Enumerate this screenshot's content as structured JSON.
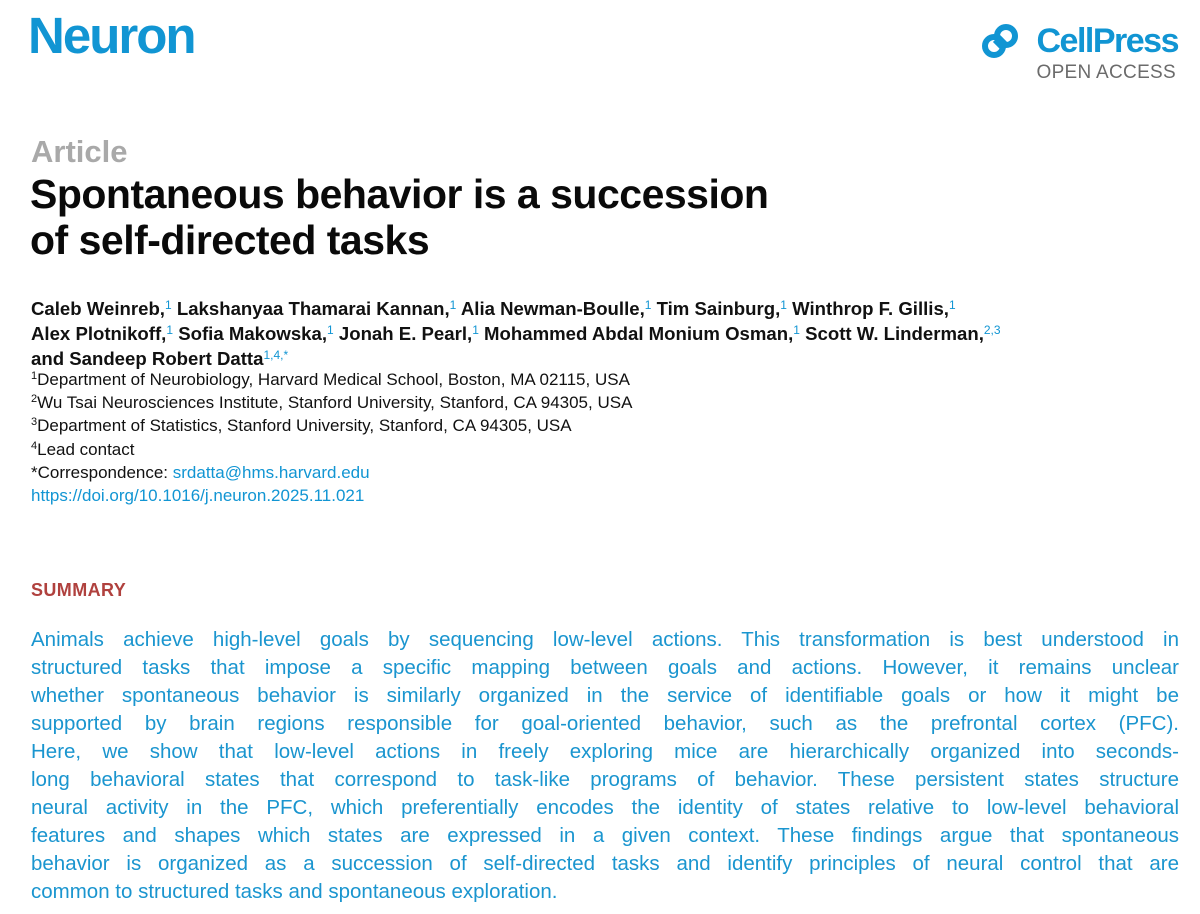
{
  "header": {
    "journal": "Neuron",
    "publisher": "CellPress",
    "access": "OPEN ACCESS",
    "logo_icon": "cellpress-logo-icon",
    "accent_color": "#1195d3"
  },
  "article": {
    "type": "Article",
    "title_lines": [
      "Spontaneous behavior is a succession",
      "of self-directed tasks"
    ]
  },
  "authors": {
    "lines": [
      [
        {
          "name": "Caleb Weinreb,",
          "sup": "1"
        },
        {
          "name": "Lakshanyaa Thamarai Kannan,",
          "sup": "1"
        },
        {
          "name": "Alia Newman-Boulle,",
          "sup": "1"
        },
        {
          "name": "Tim Sainburg,",
          "sup": "1"
        },
        {
          "name": "Winthrop F. Gillis,",
          "sup": "1"
        }
      ],
      [
        {
          "name": "Alex Plotnikoff,",
          "sup": "1"
        },
        {
          "name": "Sofia Makowska,",
          "sup": "1"
        },
        {
          "name": "Jonah E. Pearl,",
          "sup": "1"
        },
        {
          "name": "Mohammed Abdal Monium Osman,",
          "sup": "1"
        },
        {
          "name": "Scott W. Linderman,",
          "sup": "2,3"
        }
      ],
      [
        {
          "name": "and Sandeep Robert Datta",
          "sup": "1,4,*"
        }
      ]
    ]
  },
  "affiliations": [
    {
      "sup": "1",
      "text": "Department of Neurobiology, Harvard Medical School, Boston, MA 02115, USA"
    },
    {
      "sup": "2",
      "text": "Wu Tsai Neurosciences Institute, Stanford University, Stanford, CA 94305, USA"
    },
    {
      "sup": "3",
      "text": "Department of Statistics, Stanford University, Stanford, CA 94305, USA"
    },
    {
      "sup": "4",
      "text": "Lead contact"
    }
  ],
  "correspondence": {
    "label": "*Correspondence: ",
    "email": "srdatta@hms.harvard.edu"
  },
  "doi": "https://doi.org/10.1016/j.neuron.2025.11.021",
  "summary": {
    "heading": "SUMMARY",
    "heading_color": "#b0413e",
    "lines": [
      "Animals achieve high-level goals by sequencing low-level actions. This transformation is best understood in",
      "structured tasks that impose a specific mapping between goals and actions. However, it remains unclear",
      "whether spontaneous behavior is similarly organized in the service of identifiable goals or how it might be",
      "supported by brain regions responsible for goal-oriented behavior, such as the prefrontal cortex (PFC).",
      "Here, we show that low-level actions in freely exploring mice are hierarchically organized into seconds-",
      "long behavioral states that correspond to task-like programs of behavior. These persistent states structure",
      "neural activity in the PFC, which preferentially encodes the identity of states relative to low-level behavioral",
      "features and shapes which states are expressed in a given context. These findings argue that spontaneous",
      "behavior is organized as a succession of self-directed tasks and identify principles of neural control that are",
      "common to structured tasks and spontaneous exploration."
    ]
  }
}
